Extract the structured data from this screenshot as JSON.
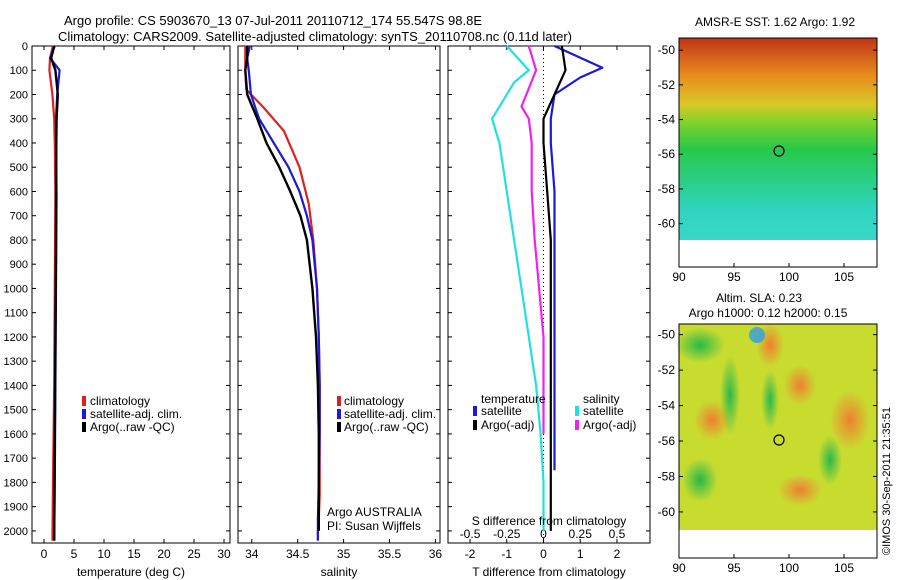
{
  "header": {
    "line1": "Argo profile: CS 5903670_13 07-Jul-2011 20110712_174 55.547S 98.8E",
    "line2": "Climatology: CARS2009. Satellite-adjusted climatology: synTS_20110708.nc (0.11d later)"
  },
  "colors": {
    "climatology": "#e02020",
    "satellite": "#1a1add",
    "argo": "#000000",
    "sat_salinity": "#22e0e0",
    "argo_salinity": "#ee22ee"
  },
  "panel_temperature": {
    "xlabel": "temperature (deg C)",
    "xticks": [
      "0",
      "5",
      "10",
      "15",
      "20",
      "25",
      "30"
    ],
    "legend": [
      "climatology",
      "satellite-adj. clim.",
      "Argo(..raw -QC)"
    ]
  },
  "panel_salinity": {
    "xlabel": "salinity",
    "xticks": [
      "34",
      "34.5",
      "35",
      "35.5",
      "36"
    ],
    "legend": [
      "climatology",
      "satellite-adj. clim.",
      "Argo(..raw -QC)"
    ],
    "note1": "Argo AUSTRALIA",
    "note2": "PI: Susan Wijffels"
  },
  "panel_diff": {
    "xlabel": "T difference from climatology",
    "toplabel": "S difference from climatology",
    "xticks": [
      "-2",
      "-1",
      "0",
      "1",
      "2"
    ],
    "sticks": [
      "-0.5",
      "-0.25",
      "0",
      "0.25",
      "0.5"
    ],
    "legend_t_title": "temperature",
    "legend_s_title": "salinity",
    "legend_t": [
      "satellite",
      "Argo(-adj)"
    ],
    "legend_s": [
      "satellite",
      "Argo(-adj)"
    ]
  },
  "depth_ticks": [
    "0",
    "100",
    "200",
    "300",
    "400",
    "500",
    "600",
    "700",
    "800",
    "900",
    "1000",
    "1100",
    "1200",
    "1300",
    "1400",
    "1500",
    "1600",
    "1700",
    "1800",
    "1900",
    "2000"
  ],
  "map_sst": {
    "title": "AMSR-E SST: 1.62 Argo: 1.92",
    "xticks": [
      "90",
      "95",
      "100",
      "105"
    ],
    "yticks": [
      "-50",
      "-52",
      "-54",
      "-56",
      "-58",
      "-60"
    ]
  },
  "map_sla": {
    "title1": "Altim. SLA: 0.23",
    "title2": "Argo h1000: 0.12 h2000: 0.15",
    "xticks": [
      "90",
      "95",
      "100",
      "105"
    ],
    "yticks": [
      "-50",
      "-52",
      "-54",
      "-56",
      "-58",
      "-60"
    ]
  },
  "stamp": "©IMOS 30-Sep-2011 21:35:51",
  "chart_data": [
    {
      "type": "line",
      "title": "",
      "xlabel": "temperature (deg C)",
      "ylabel": "",
      "xlim": [
        -2,
        31
      ],
      "ylim": [
        2050,
        0
      ],
      "series": [
        {
          "name": "climatology",
          "x": [
            1.5,
            1.0,
            0.9,
            1.4,
            1.7,
            1.8,
            1.9,
            1.85,
            1.8,
            1.75,
            1.7,
            1.6,
            1.5,
            1.4
          ],
          "y": [
            0,
            50,
            100,
            200,
            300,
            400,
            600,
            800,
            1000,
            1200,
            1400,
            1600,
            1800,
            2040
          ]
        },
        {
          "name": "satellite-adj. clim.",
          "x": [
            1.8,
            1.0,
            2.6,
            2.2,
            2.0,
            2.0,
            2.1,
            2.05,
            2.0,
            1.95,
            1.9,
            1.85,
            1.8,
            1.7
          ],
          "y": [
            0,
            50,
            100,
            200,
            300,
            400,
            600,
            800,
            1000,
            1200,
            1400,
            1600,
            1800,
            2040
          ]
        },
        {
          "name": "Argo(..raw -QC)",
          "x": [
            1.7,
            1.2,
            1.9,
            2.3,
            2.1,
            2.05,
            2.0,
            2.0,
            1.95,
            1.9,
            1.85,
            1.8,
            1.75,
            1.7
          ],
          "y": [
            0,
            50,
            100,
            200,
            300,
            400,
            600,
            800,
            1000,
            1200,
            1400,
            1600,
            1800,
            2040
          ]
        }
      ]
    },
    {
      "type": "line",
      "title": "",
      "xlabel": "salinity",
      "ylabel": "",
      "xlim": [
        33.85,
        36.05
      ],
      "ylim": [
        2050,
        0
      ],
      "series": [
        {
          "name": "climatology",
          "x": [
            33.93,
            33.93,
            33.94,
            34.12,
            34.35,
            34.52,
            34.62,
            34.67,
            34.71,
            34.73,
            34.74,
            34.74,
            34.74,
            34.74,
            34.73,
            34.72,
            34.72
          ],
          "y": [
            0,
            100,
            180,
            250,
            350,
            500,
            650,
            800,
            1000,
            1200,
            1400,
            1600,
            1750,
            1850,
            1950,
            2000,
            2040
          ]
        },
        {
          "name": "satellite-adj. clim.",
          "x": [
            33.98,
            33.95,
            33.97,
            33.99,
            34.08,
            34.24,
            34.4,
            34.52,
            34.6,
            34.66,
            34.71,
            34.73,
            34.74,
            34.74,
            34.73,
            34.72,
            34.72
          ],
          "y": [
            0,
            50,
            110,
            200,
            300,
            400,
            500,
            600,
            700,
            800,
            1000,
            1200,
            1400,
            1600,
            1800,
            1950,
            2040
          ]
        },
        {
          "name": "Argo(..raw -QC)",
          "x": [
            33.95,
            33.95,
            33.93,
            33.95,
            34.06,
            34.16,
            34.3,
            34.42,
            34.53,
            34.6,
            34.66,
            34.7,
            34.72,
            34.73,
            34.73,
            34.73
          ],
          "y": [
            0,
            50,
            100,
            200,
            300,
            400,
            500,
            600,
            700,
            800,
            1000,
            1200,
            1400,
            1600,
            1800,
            2000
          ]
        }
      ]
    },
    {
      "type": "line",
      "title": "",
      "xlabel": "T difference from climatology",
      "ylabel": "S difference from climatology",
      "xlim": [
        -2.6,
        2.9
      ],
      "ylim": [
        2050,
        0
      ],
      "series": [
        {
          "name": "satellite",
          "x": [
            0.3,
            1.6,
            1.0,
            0.3,
            0.2,
            0.2,
            0.3,
            0.3,
            0.3,
            0.3,
            0.3,
            0.3,
            0.3
          ],
          "y": [
            0,
            90,
            130,
            200,
            300,
            400,
            600,
            800,
            1000,
            1200,
            1400,
            1600,
            1750
          ]
        },
        {
          "name": "Argo(-adj)",
          "x": [
            0.5,
            0.6,
            0.3,
            0.0,
            0.0,
            0.1,
            0.2,
            0.2,
            0.2,
            0.2,
            0.2,
            0.2,
            0.2
          ],
          "y": [
            0,
            100,
            200,
            300,
            400,
            600,
            800,
            1000,
            1200,
            1400,
            1600,
            1800,
            2000
          ]
        },
        {
          "name": "satellite",
          "x": [
            -0.25,
            -0.1,
            -0.2,
            -0.35,
            -0.3,
            -0.25,
            -0.2,
            -0.15,
            -0.1,
            -0.05,
            -0.02,
            0.0,
            0.0
          ],
          "y": [
            0,
            100,
            150,
            300,
            400,
            600,
            800,
            1000,
            1200,
            1400,
            1600,
            1800,
            2000
          ]
        },
        {
          "name": "Argo(-adj)",
          "x": [
            -0.1,
            -0.05,
            -0.15,
            -0.1,
            -0.08,
            -0.08,
            -0.06,
            -0.03,
            0.0,
            0.0,
            0.0
          ],
          "y": [
            0,
            100,
            250,
            300,
            400,
            600,
            800,
            1000,
            1200,
            1400,
            1600
          ]
        }
      ]
    }
  ]
}
